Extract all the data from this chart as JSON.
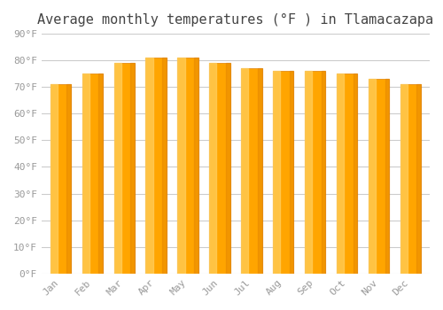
{
  "title": "Average monthly temperatures (°F ) in Tlamacazapa",
  "months": [
    "Jan",
    "Feb",
    "Mar",
    "Apr",
    "May",
    "Jun",
    "Jul",
    "Aug",
    "Sep",
    "Oct",
    "Nov",
    "Dec"
  ],
  "values": [
    71,
    75,
    79,
    81,
    81,
    79,
    77,
    76,
    76,
    75,
    73,
    71
  ],
  "bar_color_main": "#FFA500",
  "bar_color_light": "#FFD060",
  "bar_color_dark": "#E08000",
  "bar_edge_color": "#CC7700",
  "background_color": "#ffffff",
  "grid_color": "#cccccc",
  "text_color": "#999999",
  "title_color": "#444444",
  "ylim": [
    0,
    90
  ],
  "yticks": [
    0,
    10,
    20,
    30,
    40,
    50,
    60,
    70,
    80,
    90
  ],
  "ytick_labels": [
    "0°F",
    "10°F",
    "20°F",
    "30°F",
    "40°F",
    "50°F",
    "60°F",
    "70°F",
    "80°F",
    "90°F"
  ],
  "title_fontsize": 11,
  "tick_fontsize": 8,
  "font_family": "monospace"
}
